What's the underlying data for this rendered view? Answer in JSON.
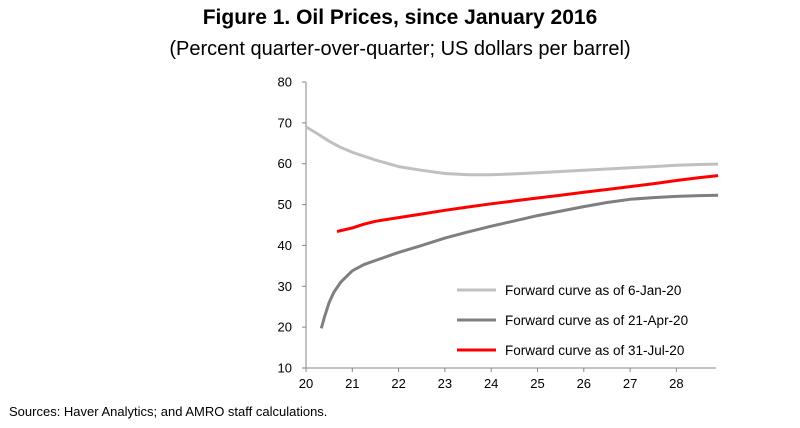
{
  "title": "Figure 1. Oil Prices, since January 2016",
  "subtitle": "(Percent quarter-over-quarter; US dollars per barrel)",
  "source": "Sources: Haver Analytics; and AMRO staff calculations.",
  "chart_data": {
    "type": "line",
    "xlim": [
      20,
      29
    ],
    "ylim": [
      10,
      80
    ],
    "x_ticks": [
      "20",
      "21",
      "22",
      "23",
      "24",
      "25",
      "26",
      "27",
      "28"
    ],
    "y_ticks": [
      "80",
      "70",
      "60",
      "50",
      "40",
      "30",
      "20",
      "10"
    ],
    "grid": false,
    "legend_position": "bottom-right",
    "series": [
      {
        "name": "Forward curve as of 6-Jan-20",
        "color": "#c0c0c0",
        "x": [
          20.0,
          20.25,
          20.5,
          20.75,
          21.0,
          21.5,
          22.0,
          22.5,
          23.0,
          23.5,
          24.0,
          24.5,
          25.0,
          25.5,
          26.0,
          26.5,
          27.0,
          27.5,
          28.0,
          28.5,
          28.9
        ],
        "y": [
          69.0,
          67.3,
          65.5,
          64.0,
          62.8,
          60.9,
          59.3,
          58.4,
          57.6,
          57.3,
          57.3,
          57.5,
          57.8,
          58.1,
          58.4,
          58.7,
          59.0,
          59.3,
          59.6,
          59.8,
          59.9
        ]
      },
      {
        "name": "Forward curve as of 21-Apr-20",
        "color": "#7f7f7f",
        "x": [
          20.33,
          20.4,
          20.5,
          20.6,
          20.75,
          21.0,
          21.25,
          21.5,
          22.0,
          22.5,
          23.0,
          23.5,
          24.0,
          24.5,
          25.0,
          25.5,
          26.0,
          26.5,
          27.0,
          27.5,
          28.0,
          28.5,
          28.9
        ],
        "y": [
          19.7,
          22.5,
          26.0,
          28.5,
          31.0,
          33.8,
          35.3,
          36.3,
          38.3,
          40.0,
          41.8,
          43.3,
          44.7,
          46.0,
          47.3,
          48.4,
          49.5,
          50.5,
          51.3,
          51.7,
          52.0,
          52.2,
          52.3
        ]
      },
      {
        "name": "Forward curve as of 31-Jul-20",
        "color": "#ff0000",
        "x": [
          20.67,
          21.0,
          21.25,
          21.5,
          22.0,
          22.5,
          23.0,
          23.5,
          24.0,
          24.5,
          25.0,
          25.5,
          26.0,
          26.5,
          27.0,
          27.5,
          28.0,
          28.5,
          28.9
        ],
        "y": [
          43.4,
          44.3,
          45.2,
          45.9,
          46.8,
          47.7,
          48.6,
          49.4,
          50.2,
          50.9,
          51.6,
          52.3,
          53.0,
          53.7,
          54.4,
          55.1,
          55.9,
          56.6,
          57.1
        ]
      }
    ]
  }
}
